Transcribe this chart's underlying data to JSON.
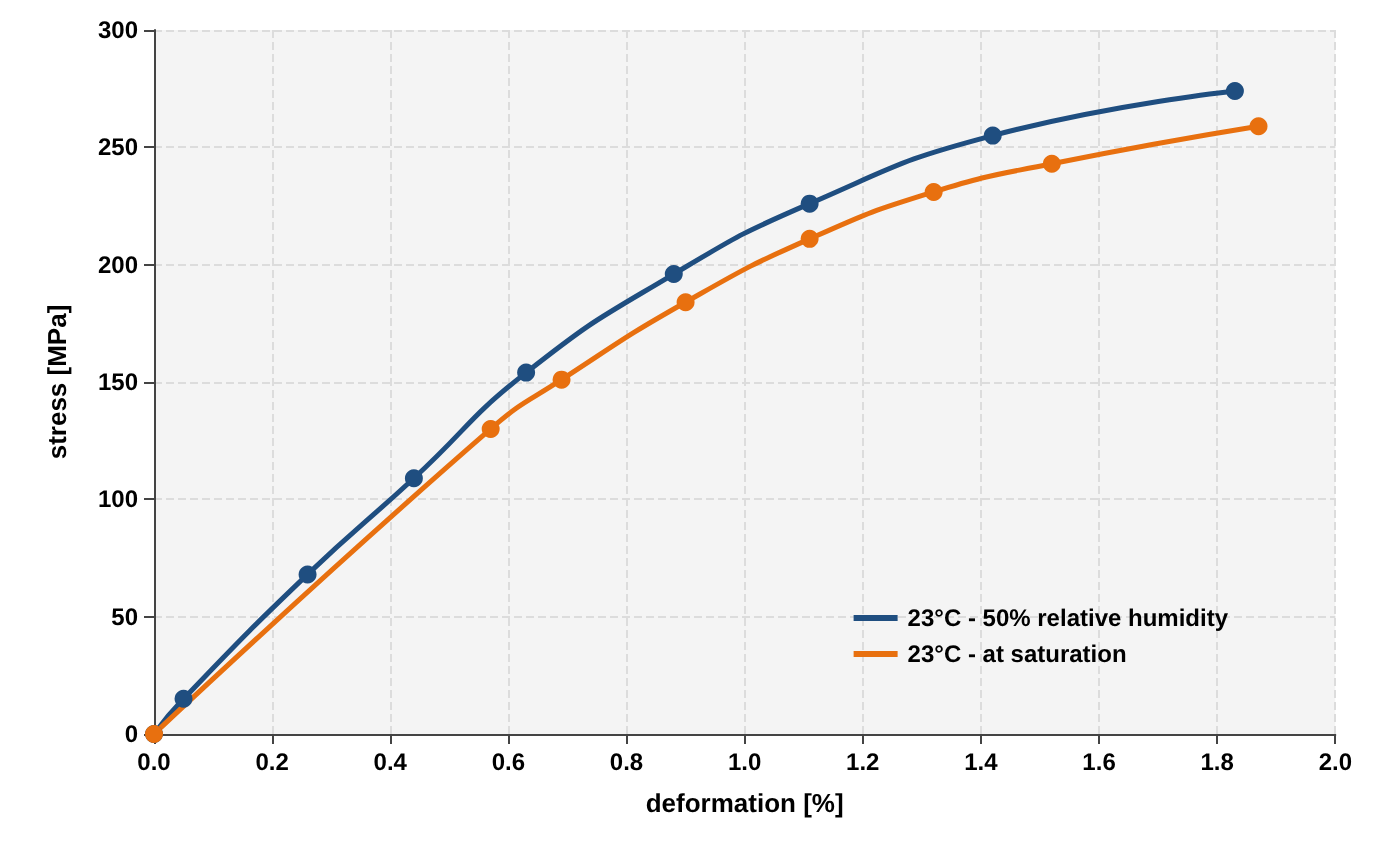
{
  "chart_data": {
    "type": "line",
    "xlabel": "deformation [%]",
    "ylabel": "stress [MPa]",
    "xlim": [
      0,
      2
    ],
    "ylim": [
      0,
      300
    ],
    "xticks": [
      {
        "value": 0,
        "label": "0.0"
      },
      {
        "value": 0.2,
        "label": "0.2"
      },
      {
        "value": 0.4,
        "label": "0.4"
      },
      {
        "value": 0.6,
        "label": "0.6"
      },
      {
        "value": 0.8,
        "label": "0.8"
      },
      {
        "value": 1,
        "label": "1.0"
      },
      {
        "value": 1.2,
        "label": "1.2"
      },
      {
        "value": 1.4,
        "label": "1.4"
      },
      {
        "value": 1.6,
        "label": "1.6"
      },
      {
        "value": 1.8,
        "label": "1.8"
      },
      {
        "value": 2,
        "label": "2.0"
      }
    ],
    "yticks": [
      0,
      50,
      100,
      150,
      200,
      250,
      300
    ],
    "grid": true,
    "legend": "bottom right",
    "marker": "circle",
    "line_style": "solid",
    "series": [
      {
        "name": "23°C - 50% relative humidity",
        "color": "#1f4e80",
        "x": [
          0,
          0.05,
          0.26,
          0.44,
          0.63,
          0.88,
          1.11,
          1.42,
          1.83
        ],
        "values": [
          0,
          15,
          68,
          109,
          154,
          196,
          226,
          255,
          274
        ]
      },
      {
        "name": "23°C - at saturation",
        "color": "#e8700f",
        "x": [
          0,
          0.57,
          0.69,
          0.9,
          1.11,
          1.32,
          1.52,
          1.87
        ],
        "values": [
          0,
          130,
          151,
          184,
          211,
          231,
          243,
          259
        ]
      }
    ]
  }
}
